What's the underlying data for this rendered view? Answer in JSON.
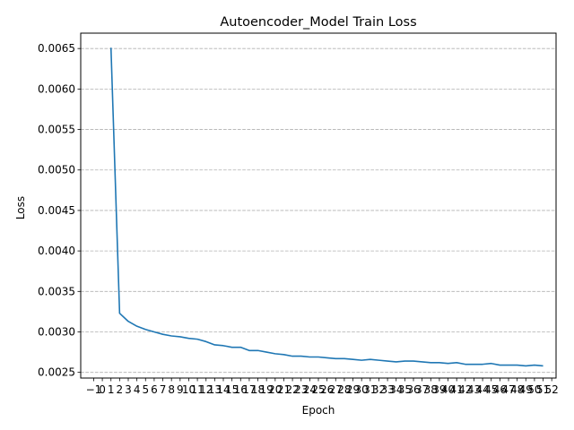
{
  "chart_data": {
    "type": "line",
    "title": "Autoencoder_Model Train Loss",
    "xlabel": "Epoch",
    "ylabel": "Loss",
    "xlim": [
      -2.5,
      52.5
    ],
    "ylim": [
      0.00243,
      0.00669
    ],
    "grid": "y-dashed",
    "x_ticks": [
      -1,
      0,
      1,
      2,
      3,
      4,
      5,
      6,
      7,
      8,
      9,
      10,
      11,
      12,
      13,
      14,
      15,
      16,
      17,
      18,
      19,
      20,
      21,
      22,
      23,
      24,
      25,
      26,
      27,
      28,
      29,
      30,
      31,
      32,
      33,
      34,
      35,
      36,
      37,
      38,
      39,
      40,
      41,
      42,
      43,
      44,
      45,
      46,
      47,
      48,
      49,
      50,
      51,
      52
    ],
    "x_tick_labels": [
      "−1",
      "0",
      "1",
      "2",
      "3",
      "4",
      "5",
      "6",
      "7",
      "8",
      "9",
      "10",
      "11",
      "12",
      "13",
      "14",
      "15",
      "16",
      "17",
      "18",
      "19",
      "20",
      "21",
      "22",
      "23",
      "24",
      "25",
      "26",
      "27",
      "28",
      "29",
      "30",
      "31",
      "32",
      "33",
      "34",
      "35",
      "36",
      "37",
      "38",
      "39",
      "40",
      "41",
      "42",
      "43",
      "44",
      "45",
      "46",
      "47",
      "48",
      "49",
      "50",
      "51",
      "52"
    ],
    "y_ticks": [
      0.0025,
      0.003,
      0.0035,
      0.004,
      0.0045,
      0.005,
      0.0055,
      0.006,
      0.0065
    ],
    "y_tick_labels": [
      "0.0025",
      "0.0030",
      "0.0035",
      "0.0040",
      "0.0045",
      "0.0050",
      "0.0055",
      "0.0060",
      "0.0065"
    ],
    "line_color": "#1f77b4",
    "x": [
      1,
      2,
      3,
      4,
      5,
      6,
      7,
      8,
      9,
      10,
      11,
      12,
      13,
      14,
      15,
      16,
      17,
      18,
      19,
      20,
      21,
      22,
      23,
      24,
      25,
      26,
      27,
      28,
      29,
      30,
      31,
      32,
      33,
      34,
      35,
      36,
      37,
      38,
      39,
      40,
      41,
      42,
      43,
      44,
      45,
      46,
      47,
      48,
      49,
      50,
      51
    ],
    "series": [
      {
        "values": [
          0.00651,
          0.00323,
          0.00313,
          0.00307,
          0.00303,
          0.003,
          0.00297,
          0.00295,
          0.00294,
          0.00292,
          0.00291,
          0.00288,
          0.00284,
          0.00283,
          0.00281,
          0.00281,
          0.00277,
          0.00277,
          0.00275,
          0.00273,
          0.00272,
          0.0027,
          0.0027,
          0.00269,
          0.00269,
          0.00268,
          0.00267,
          0.00267,
          0.00266,
          0.00265,
          0.00266,
          0.00265,
          0.00264,
          0.00263,
          0.00264,
          0.00264,
          0.00263,
          0.00262,
          0.00262,
          0.00261,
          0.00262,
          0.0026,
          0.0026,
          0.0026,
          0.00261,
          0.00259,
          0.00259,
          0.00259,
          0.00258,
          0.00259,
          0.00258
        ]
      }
    ]
  }
}
